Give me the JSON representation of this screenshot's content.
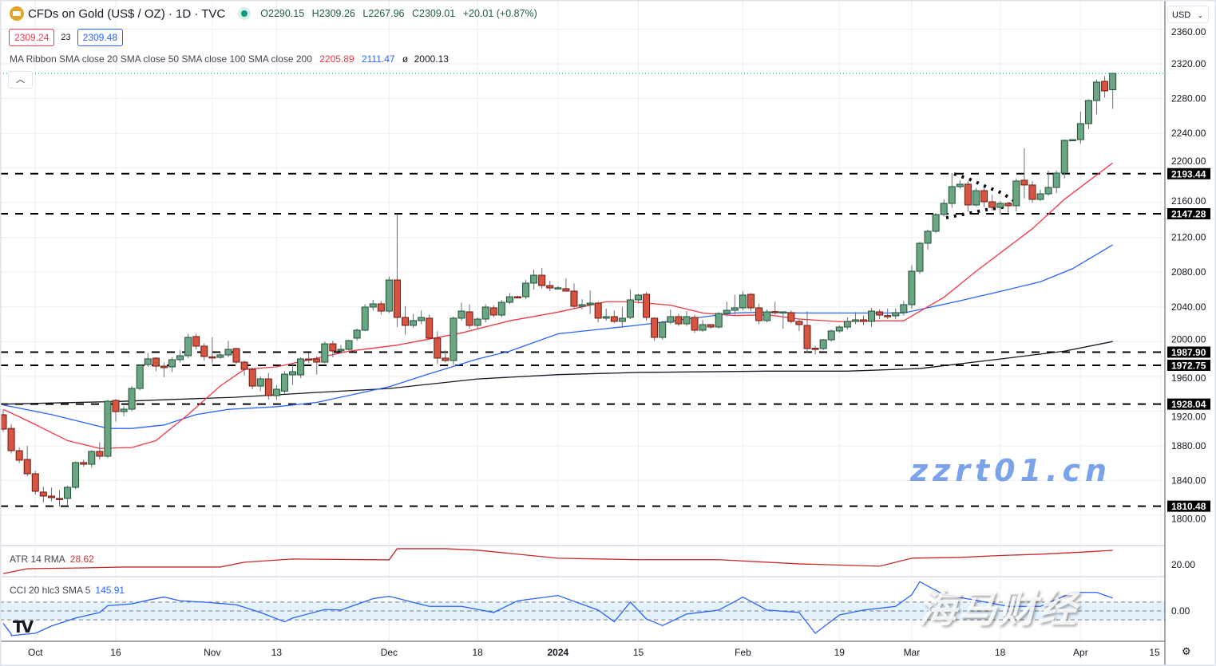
{
  "header": {
    "symbol_title": "CFDs on Gold (US$ / OZ) · 1D · TVC",
    "open": "O2290.15",
    "high": "H2309.26",
    "low": "L2267.96",
    "close": "C2309.01",
    "change": "+20.01 (+0.87%)",
    "sell_price": "2309.24",
    "spread": "23",
    "buy_price": "2309.48",
    "market_status": "open"
  },
  "ma_ribbon": {
    "label": "MA Ribbon SMA close 20 SMA close 50 SMA close 100 SMA close 200",
    "sma20": "2205.89",
    "sma50": "2111.47",
    "sma100_prefix": "ø",
    "sma100": "2000.13"
  },
  "currency_selector": "USD",
  "colors": {
    "up": "#6ba583",
    "up_border": "#1d5235",
    "down": "#d75442",
    "down_border": "#6b1a10",
    "sma20": "#f23645",
    "sma50": "#2962ff",
    "sma100": "#131722",
    "atr": "#c62828",
    "cci": "#2962ff",
    "cci_band": "#e3f2fd"
  },
  "price_axis": {
    "ticks": [
      "2360.00",
      "2320.00",
      "2280.00",
      "2240.00",
      "2200.00",
      "2160.00",
      "2120.00",
      "2080.00",
      "2040.00",
      "2000.00",
      "1960.00",
      "1920.00",
      "1880.00",
      "1840.00",
      "1800.00"
    ]
  },
  "levels": [
    "2193.44",
    "2147.28",
    "1987.90",
    "1972.75",
    "1928.04",
    "1810.48"
  ],
  "time_axis": [
    "Oct",
    "16",
    "Nov",
    "13",
    "Dec",
    "18",
    "2024",
    "15",
    "Feb",
    "19",
    "Mar",
    "18",
    "Apr",
    "15"
  ],
  "atr": {
    "label": "ATR 14 RMA",
    "value": "28.62",
    "axis_tick": "20.00"
  },
  "cci": {
    "label": "CCI 20 hlc3 SMA 5",
    "value": "145.91",
    "axis_tick": "0.00"
  },
  "watermark": {
    "cn": "海马财经",
    "url": "zzrt01.cn"
  },
  "chart_data": {
    "type": "candlestick",
    "ylim": [
      1790,
      2365
    ],
    "ohlc": [
      [
        1915.8,
        1921,
        1896,
        1899.2
      ],
      [
        1900,
        1905,
        1871,
        1874.4
      ],
      [
        1874.4,
        1878,
        1860,
        1863.4
      ],
      [
        1864.3,
        1880,
        1845,
        1847.8
      ],
      [
        1847.8,
        1851,
        1824,
        1827.6
      ],
      [
        1826.7,
        1833,
        1815,
        1822.1
      ],
      [
        1822.1,
        1832,
        1816,
        1820.3
      ],
      [
        1819.4,
        1829,
        1810,
        1818.5
      ],
      [
        1819.4,
        1834,
        1811,
        1832.2
      ],
      [
        1832.2,
        1862,
        1830,
        1860.7
      ],
      [
        1860.7,
        1864,
        1856,
        1858.8
      ],
      [
        1858.8,
        1875,
        1855,
        1873.5
      ],
      [
        1873.5,
        1884,
        1864,
        1868
      ],
      [
        1868,
        1933,
        1866,
        1931.4
      ],
      [
        1932.3,
        1934,
        1908,
        1919.4
      ],
      [
        1919.4,
        1926,
        1914,
        1922.2
      ],
      [
        1922.2,
        1949,
        1920,
        1946.1
      ],
      [
        1946.1,
        1974,
        1944,
        1972.7
      ],
      [
        1973.6,
        1987,
        1971,
        1980.1
      ],
      [
        1981,
        1982,
        1966,
        1971.8
      ],
      [
        1971.8,
        1976,
        1959,
        1970
      ],
      [
        1970.9,
        1982,
        1965,
        1979.2
      ],
      [
        1979.2,
        1990,
        1976,
        1983.8
      ],
      [
        1983.8,
        2009,
        1981,
        2004.9
      ],
      [
        2005.8,
        2009,
        1991,
        1994.8
      ],
      [
        1994.8,
        1998,
        1978,
        1982.9
      ],
      [
        1982.5,
        2005,
        1975,
        1981.9
      ],
      [
        1981.9,
        1988,
        1980,
        1984.7
      ],
      [
        1984.7,
        2001,
        1982,
        1991.1
      ],
      [
        1992,
        1993,
        1974,
        1976.4
      ],
      [
        1976.4,
        1978,
        1961,
        1968.1
      ],
      [
        1968.1,
        1970,
        1945,
        1948.8
      ],
      [
        1948.8,
        1960,
        1943,
        1957.1
      ],
      [
        1957.1,
        1964,
        1933,
        1937.8
      ],
      [
        1937.8,
        1950,
        1933,
        1945.2
      ],
      [
        1943,
        1966,
        1940,
        1962.6
      ],
      [
        1961.7,
        1975,
        1950,
        1965.4
      ],
      [
        1961.7,
        1982,
        1958,
        1980.1
      ],
      [
        1980.1,
        1987,
        1975,
        1979.5
      ],
      [
        1980.1,
        1983,
        1962,
        1976.4
      ],
      [
        1976.4,
        2000,
        1975,
        1997.5
      ],
      [
        1997.5,
        2001,
        1982,
        1989.3
      ],
      [
        1989.3,
        1996,
        1986,
        1991.1
      ],
      [
        1991.1,
        2002,
        1990,
        2001.2
      ],
      [
        2004,
        2015,
        2001,
        2013.2
      ],
      [
        2013.2,
        2043,
        2012,
        2039.8
      ],
      [
        2039.8,
        2048,
        2036,
        2043.5
      ],
      [
        2043.5,
        2047,
        2031,
        2035.2
      ],
      [
        2035.2,
        2075,
        2033,
        2071
      ],
      [
        2071,
        2146.4,
        2017,
        2027.9
      ],
      [
        2027.9,
        2041,
        2008,
        2018.7
      ],
      [
        2018.7,
        2032,
        2016,
        2024.2
      ],
      [
        2024.2,
        2036,
        2020,
        2027.9
      ],
      [
        2027,
        2031,
        2003,
        2004
      ],
      [
        2004,
        2012,
        1974,
        1981
      ],
      [
        1981,
        1990,
        1976,
        1978.2
      ],
      [
        1978.2,
        2029,
        1973,
        2027
      ],
      [
        2027,
        2045,
        2024,
        2035.2
      ],
      [
        2034.3,
        2043,
        2015,
        2018.7
      ],
      [
        2018.7,
        2028,
        2014,
        2026
      ],
      [
        2026,
        2043,
        2022,
        2039.8
      ],
      [
        2038.9,
        2042,
        2028,
        2030.6
      ],
      [
        2030.6,
        2048,
        2028,
        2045.3
      ],
      [
        2045.3,
        2056,
        2043,
        2051.7
      ],
      [
        2051.7,
        2053,
        2050,
        2051.2
      ],
      [
        2051.7,
        2071,
        2049,
        2067.4
      ],
      [
        2067.4,
        2083,
        2060,
        2076.5
      ],
      [
        2076.5,
        2085,
        2061,
        2064.6
      ],
      [
        2064.6,
        2070,
        2058,
        2061.8
      ],
      [
        2061.8,
        2064,
        2060,
        2062
      ],
      [
        2061,
        2073,
        2058,
        2058.2
      ],
      [
        2058.2,
        2067,
        2038,
        2040.7
      ],
      [
        2040.7,
        2049,
        2037,
        2042.6
      ],
      [
        2042.6,
        2059,
        2032,
        2044.4
      ],
      [
        2044.4,
        2046,
        2022,
        2027
      ],
      [
        2027,
        2038,
        2024,
        2028.8
      ],
      [
        2028.8,
        2036,
        2021,
        2023.3
      ],
      [
        2023.3,
        2040,
        2016,
        2027
      ],
      [
        2027.9,
        2060,
        2026,
        2048.1
      ],
      [
        2048.1,
        2055,
        2044,
        2053.6
      ],
      [
        2054.5,
        2057,
        2024,
        2027.9
      ],
      [
        2027,
        2028,
        2001,
        2004.9
      ],
      [
        2004.9,
        2024,
        2002,
        2022.3
      ],
      [
        2022.3,
        2037,
        2020,
        2028.8
      ],
      [
        2028.8,
        2032,
        2018,
        2020.5
      ],
      [
        2020.5,
        2035,
        2018,
        2028.8
      ],
      [
        2027.9,
        2031,
        2010,
        2013.2
      ],
      [
        2013.2,
        2025,
        2011,
        2019.6
      ],
      [
        2019.6,
        2020,
        2015,
        2016.8
      ],
      [
        2016.8,
        2034,
        2015,
        2032.5
      ],
      [
        2032.5,
        2046,
        2029,
        2036.1
      ],
      [
        2036.1,
        2054,
        2031,
        2038.9
      ],
      [
        2038.9,
        2058,
        2036,
        2053.6
      ],
      [
        2054.5,
        2056,
        2035,
        2038.9
      ],
      [
        2038.9,
        2044,
        2020,
        2024.2
      ],
      [
        2024.2,
        2037,
        2022,
        2034.3
      ],
      [
        2034.6,
        2046,
        2031,
        2034
      ],
      [
        2034,
        2035,
        2015,
        2034.3
      ],
      [
        2033.4,
        2036,
        2021,
        2023.3
      ],
      [
        2023.3,
        2025,
        2012,
        2019.6
      ],
      [
        2018.7,
        2035,
        1987,
        1992
      ],
      [
        1992.4,
        1995,
        1985,
        1991.6
      ],
      [
        1992,
        2003,
        1990,
        2002.1
      ],
      [
        2002.1,
        2014,
        2000,
        2012.3
      ],
      [
        2012.3,
        2019,
        2010,
        2016.8
      ],
      [
        2016.8,
        2028,
        2014,
        2023.3
      ],
      [
        2023.3,
        2034,
        2020,
        2025.1
      ],
      [
        2025.1,
        2030,
        2019,
        2023.3
      ],
      [
        2023.3,
        2039,
        2017,
        2035.2
      ],
      [
        2034.3,
        2037,
        2026,
        2030.6
      ],
      [
        2030,
        2038,
        2026,
        2029.7
      ],
      [
        2029.7,
        2038,
        2026,
        2033.4
      ],
      [
        2033.4,
        2047,
        2030,
        2042.6
      ],
      [
        2042.6,
        2088,
        2038,
        2081.1
      ],
      [
        2081.1,
        2115,
        2078,
        2113.3
      ],
      [
        2113.3,
        2129,
        2106,
        2127.1
      ],
      [
        2127.1,
        2148,
        2125,
        2146.4
      ],
      [
        2146.4,
        2164,
        2144,
        2159.2
      ],
      [
        2159.2,
        2194.1,
        2154,
        2178.5
      ],
      [
        2178.5,
        2186,
        2176,
        2181.3
      ],
      [
        2181.3,
        2185,
        2150,
        2157.4
      ],
      [
        2157.4,
        2177,
        2156,
        2173.9
      ],
      [
        2173.9,
        2178,
        2155,
        2161.1
      ],
      [
        2161.1,
        2169,
        2151,
        2154.6
      ],
      [
        2154.6,
        2162,
        2146,
        2159.2
      ],
      [
        2159.2,
        2161,
        2147,
        2156.5
      ],
      [
        2156.5,
        2188,
        2150,
        2185
      ],
      [
        2185.9,
        2222.6,
        2165,
        2180.4
      ],
      [
        2180.4,
        2185,
        2160,
        2163.8
      ],
      [
        2163.8,
        2175,
        2162,
        2170.2
      ],
      [
        2170.2,
        2197,
        2168,
        2177.6
      ],
      [
        2177.6,
        2197,
        2171,
        2194.1
      ],
      [
        2194.1,
        2233,
        2188,
        2231.8
      ],
      [
        2231.8,
        2233,
        2231,
        2232.7
      ],
      [
        2232.7,
        2265,
        2228,
        2251.1
      ],
      [
        2251.1,
        2279,
        2245,
        2277.7
      ],
      [
        2277.7,
        2302,
        2262,
        2298.9
      ],
      [
        2299.8,
        2306,
        2281,
        2288.8
      ],
      [
        2290.15,
        2309.26,
        2267.96,
        2309.01
      ]
    ],
    "sma20": [
      [
        0,
        1922
      ],
      [
        3,
        1909
      ],
      [
        8,
        1886
      ],
      [
        12,
        1877
      ],
      [
        16,
        1878
      ],
      [
        19,
        1886
      ],
      [
        23,
        1916
      ],
      [
        27,
        1949
      ],
      [
        30,
        1968
      ],
      [
        34,
        1971
      ],
      [
        43,
        1989
      ],
      [
        49,
        1996
      ],
      [
        53,
        2003
      ],
      [
        57,
        2010
      ],
      [
        63,
        2024
      ],
      [
        69,
        2034
      ],
      [
        75,
        2046
      ],
      [
        78,
        2046
      ],
      [
        83,
        2042
      ],
      [
        87,
        2033
      ],
      [
        91,
        2030
      ],
      [
        95,
        2031
      ],
      [
        99,
        2026
      ],
      [
        104,
        2023
      ],
      [
        109,
        2024
      ],
      [
        112,
        2024
      ],
      [
        117,
        2051
      ],
      [
        121,
        2081
      ],
      [
        125,
        2109
      ],
      [
        128,
        2130
      ],
      [
        132,
        2164
      ],
      [
        138,
        2205.89
      ]
    ],
    "sma50": [
      [
        0,
        1927
      ],
      [
        6,
        1916
      ],
      [
        13,
        1900
      ],
      [
        16,
        1900
      ],
      [
        20,
        1904
      ],
      [
        24,
        1916
      ],
      [
        28,
        1922
      ],
      [
        34,
        1925
      ],
      [
        39,
        1930
      ],
      [
        48,
        1948
      ],
      [
        53,
        1963
      ],
      [
        59,
        1980
      ],
      [
        63,
        1989
      ],
      [
        69,
        2009
      ],
      [
        75,
        2015
      ],
      [
        79,
        2019
      ],
      [
        85,
        2026
      ],
      [
        91,
        2033
      ],
      [
        95,
        2034
      ],
      [
        99,
        2033
      ],
      [
        104,
        2033
      ],
      [
        109,
        2033
      ],
      [
        112,
        2033
      ],
      [
        119,
        2047
      ],
      [
        125,
        2060
      ],
      [
        129,
        2069
      ],
      [
        133,
        2084
      ],
      [
        138,
        2111.47
      ]
    ],
    "sma100": [
      [
        0,
        1928
      ],
      [
        14,
        1931
      ],
      [
        29,
        1936
      ],
      [
        39,
        1941.5
      ],
      [
        48,
        1946
      ],
      [
        59,
        1957
      ],
      [
        69,
        1962
      ],
      [
        79,
        1964.5
      ],
      [
        95,
        1966
      ],
      [
        105,
        1966
      ],
      [
        114,
        1969
      ],
      [
        124,
        1980
      ],
      [
        132,
        1989
      ],
      [
        138,
        2000.13
      ]
    ],
    "atr_series": [
      [
        0,
        14.7
      ],
      [
        3,
        17.6
      ],
      [
        10,
        18.1
      ],
      [
        15,
        18.6
      ],
      [
        27,
        18.6
      ],
      [
        30,
        21.5
      ],
      [
        36,
        23.4
      ],
      [
        48,
        22.9
      ],
      [
        49,
        29.6
      ],
      [
        55,
        29.6
      ],
      [
        59,
        28.7
      ],
      [
        69,
        23.9
      ],
      [
        79,
        23
      ],
      [
        89,
        23
      ],
      [
        99,
        20.5
      ],
      [
        109,
        19.1
      ],
      [
        113,
        23.9
      ],
      [
        119,
        24.4
      ],
      [
        124,
        25.5
      ],
      [
        129,
        26.3
      ],
      [
        134,
        27.5
      ],
      [
        138,
        28.62
      ]
    ],
    "cci_series": [
      [
        0,
        -139
      ],
      [
        1,
        -261
      ],
      [
        1,
        -278
      ],
      [
        3,
        -260
      ],
      [
        4,
        -252
      ],
      [
        6,
        -170
      ],
      [
        9,
        -80
      ],
      [
        12,
        -17
      ],
      [
        13,
        60
      ],
      [
        16,
        80
      ],
      [
        18,
        122
      ],
      [
        20,
        157
      ],
      [
        22,
        115
      ],
      [
        25,
        100
      ],
      [
        29,
        70
      ],
      [
        32,
        -17
      ],
      [
        35,
        -122
      ],
      [
        36,
        -80
      ],
      [
        40,
        17
      ],
      [
        42,
        10
      ],
      [
        46,
        139
      ],
      [
        48,
        165
      ],
      [
        50,
        120
      ],
      [
        53,
        52
      ],
      [
        57,
        52
      ],
      [
        61,
        -17
      ],
      [
        64,
        115
      ],
      [
        69,
        174
      ],
      [
        74,
        10
      ],
      [
        76,
        -122
      ],
      [
        78,
        100
      ],
      [
        80,
        -90
      ],
      [
        82,
        -165
      ],
      [
        85,
        -35
      ],
      [
        89,
        10
      ],
      [
        92,
        157
      ],
      [
        95,
        10
      ],
      [
        99,
        -17
      ],
      [
        101,
        -252
      ],
      [
        104,
        -45
      ],
      [
        107,
        10
      ],
      [
        111,
        52
      ],
      [
        113,
        183
      ],
      [
        114,
        330
      ],
      [
        117,
        183
      ],
      [
        121,
        120
      ],
      [
        125,
        52
      ],
      [
        129,
        52
      ],
      [
        133,
        209
      ],
      [
        136,
        209
      ],
      [
        138,
        145.91
      ]
    ],
    "cci_bands": [
      100,
      0,
      -100
    ]
  }
}
